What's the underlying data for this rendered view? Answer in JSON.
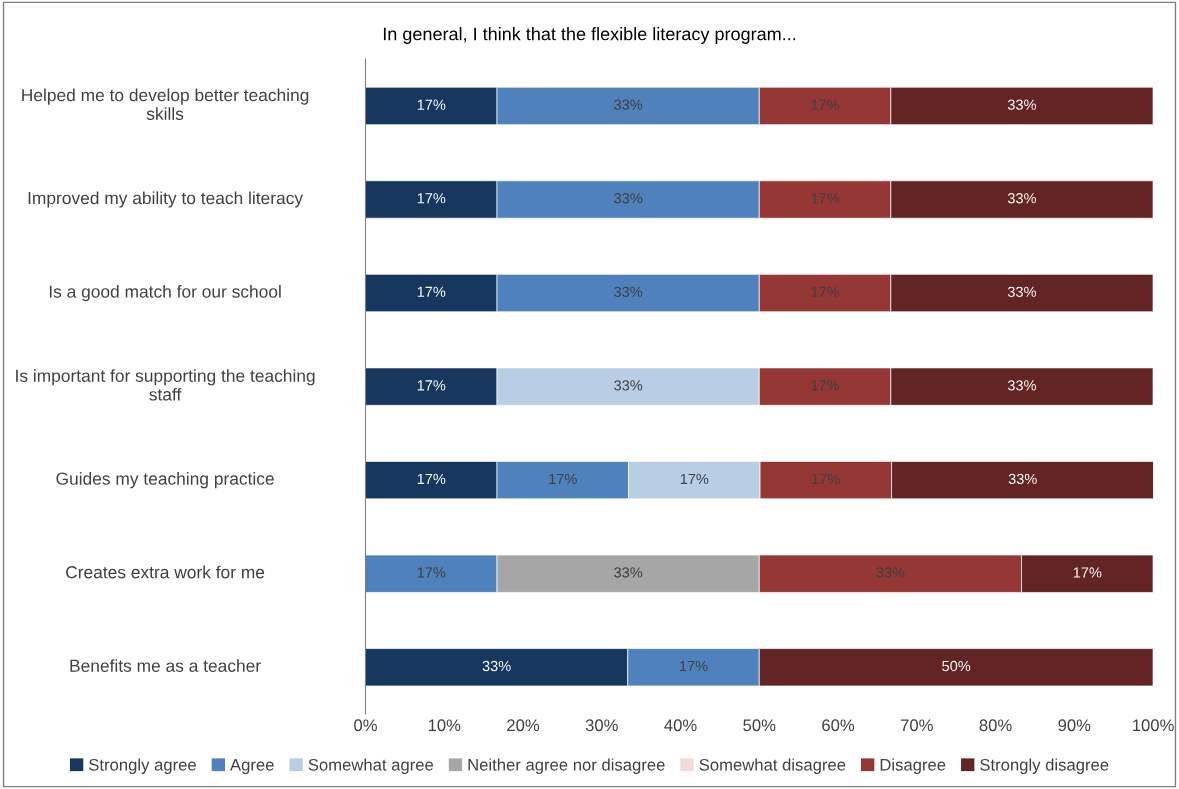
{
  "chart_data": {
    "type": "bar",
    "orientation": "horizontal",
    "stacked": true,
    "title": "In general, I think that the flexible literacy program...",
    "categories": [
      "Helped me to develop better teaching skills",
      "Improved my ability to teach literacy",
      "Is a good match for our school",
      "Is important for supporting the teaching staff",
      "Guides my teaching practice",
      "Creates extra work for me",
      "Benefits me as a teacher"
    ],
    "series": [
      {
        "name": "Strongly agree",
        "color": "#17375e",
        "values": [
          16.7,
          16.7,
          16.7,
          16.7,
          16.7,
          null,
          33.3
        ],
        "value_labels": [
          "17%",
          "17%",
          "17%",
          "17%",
          "17%",
          null,
          "33%"
        ]
      },
      {
        "name": "Agree",
        "color": "#4f81bd",
        "values": [
          33.3,
          33.3,
          33.3,
          null,
          16.7,
          16.7,
          16.7
        ],
        "value_labels": [
          "33%",
          "33%",
          "33%",
          null,
          "17%",
          "17%",
          "17%"
        ]
      },
      {
        "name": "Somewhat agree",
        "color": "#b9cde5",
        "values": [
          null,
          null,
          null,
          33.3,
          16.7,
          null,
          null
        ],
        "value_labels": [
          null,
          null,
          null,
          "33%",
          "17%",
          null,
          null
        ]
      },
      {
        "name": "Neither agree nor disagree",
        "color": "#a6a6a6",
        "values": [
          null,
          null,
          null,
          null,
          null,
          33.3,
          null
        ],
        "value_labels": [
          null,
          null,
          null,
          null,
          null,
          "33%",
          null
        ]
      },
      {
        "name": "Somewhat disagree",
        "color": "#f2dcdb",
        "values": [
          null,
          null,
          null,
          null,
          null,
          null,
          null
        ]
      },
      {
        "name": "Disagree",
        "color": "#953735",
        "values": [
          16.7,
          16.7,
          16.7,
          16.7,
          16.7,
          33.3,
          null
        ],
        "value_labels": [
          "17%",
          "17%",
          "17%",
          "17%",
          "17%",
          "33%",
          null
        ]
      },
      {
        "name": "Strongly disagree",
        "color": "#632523",
        "values": [
          33.3,
          33.3,
          33.3,
          33.3,
          33.3,
          16.7,
          50
        ],
        "value_labels": [
          "33%",
          "33%",
          "33%",
          "33%",
          "33%",
          "17%",
          "50%"
        ]
      }
    ],
    "xlim": [
      0,
      100
    ],
    "xticks": [
      {
        "value": 0,
        "label": "0%"
      },
      {
        "value": 10,
        "label": "10%"
      },
      {
        "value": 20,
        "label": "20%"
      },
      {
        "value": 30,
        "label": "30%"
      },
      {
        "value": 40,
        "label": "40%"
      },
      {
        "value": 50,
        "label": "50%"
      },
      {
        "value": 60,
        "label": "60%"
      },
      {
        "value": 70,
        "label": "70%"
      },
      {
        "value": 80,
        "label": "80%"
      },
      {
        "value": 90,
        "label": "90%"
      },
      {
        "value": 100,
        "label": "100%"
      }
    ],
    "grid": false,
    "legend": "bottom"
  }
}
